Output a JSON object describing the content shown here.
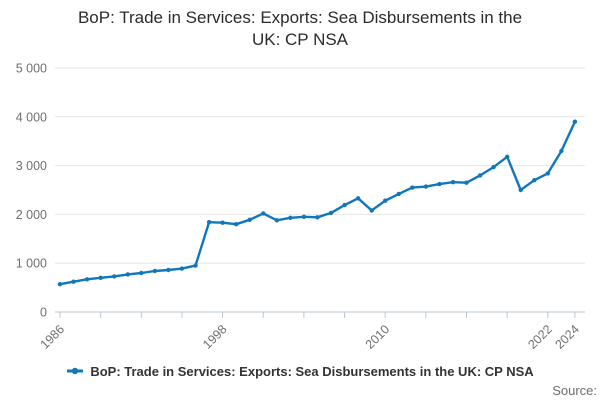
{
  "title_line1": "BoP: Trade in Services: Exports: Sea Disbursements in the",
  "title_line2": "UK: CP NSA",
  "legend": {
    "label": "BoP: Trade in Services: Exports: Sea Disbursements in the UK: CP NSA"
  },
  "source_label": "Source:",
  "colors": {
    "line": "#1077bd",
    "marker": "#1077bd",
    "grid": "#e6e6e6",
    "axis": "#b9c8d6",
    "tick_label": "#6f6f6f",
    "title_text": "#2b2b2b",
    "legend_text": "#333333",
    "source_text": "#6d6d6d"
  },
  "chart_data": {
    "type": "line",
    "title": "BoP: Trade in Services: Exports: Sea Disbursements in the UK: CP NSA",
    "series_name": "BoP: Trade in Services: Exports: Sea Disbursements in the UK: CP NSA",
    "x": [
      1986,
      1987,
      1988,
      1989,
      1990,
      1991,
      1992,
      1993,
      1994,
      1995,
      1996,
      1997,
      1998,
      1999,
      2000,
      2001,
      2002,
      2003,
      2004,
      2005,
      2006,
      2007,
      2008,
      2009,
      2010,
      2011,
      2012,
      2013,
      2014,
      2015,
      2016,
      2017,
      2018,
      2019,
      2020,
      2021,
      2022,
      2023,
      2024
    ],
    "values": [
      570,
      620,
      670,
      700,
      730,
      770,
      800,
      840,
      860,
      890,
      950,
      1840,
      1830,
      1800,
      1890,
      2020,
      1880,
      1930,
      1950,
      1940,
      2030,
      2190,
      2330,
      2080,
      2280,
      2420,
      2550,
      2570,
      2620,
      2660,
      2650,
      2800,
      2970,
      3180,
      2500,
      2700,
      2840,
      3300,
      3900
    ],
    "xlabel": "",
    "ylabel": "",
    "xlim": [
      1986,
      2024
    ],
    "ylim": [
      0,
      5000
    ],
    "y_ticks": [
      0,
      1000,
      2000,
      3000,
      4000,
      5000
    ],
    "y_tick_labels": [
      "0",
      "1 000",
      "2 000",
      "3 000",
      "4 000",
      "5 000"
    ],
    "x_ticks": [
      1986,
      1989,
      1992,
      1995,
      1998,
      2001,
      2004,
      2007,
      2010,
      2013,
      2016,
      2019,
      2022,
      2024
    ],
    "x_labeled_ticks": [
      1986,
      1998,
      2010,
      2022,
      2024
    ],
    "grid": "horizontal",
    "legend_position": "bottom",
    "marker": "circle"
  }
}
